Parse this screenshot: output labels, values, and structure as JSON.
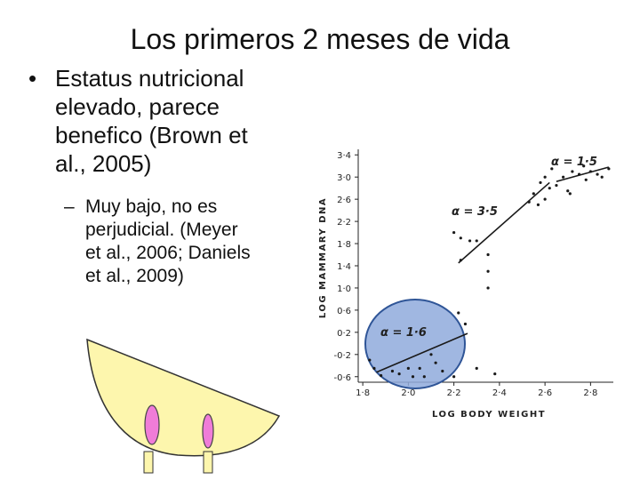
{
  "slide": {
    "title": "Los primeros 2 meses de vida",
    "bullet1": {
      "marker": "•",
      "text": "Estatus nutricional\nelevado, parece\nbenefico (Brown et\nal., 2005)"
    },
    "bullet2": {
      "marker": "–",
      "text": "Muy bajo, no es\nperjudicial. (Meyer\net al., 2006; Daniels\net al., 2009)"
    }
  },
  "colors": {
    "udder_fill": "#fdf6ad",
    "teat_fill": "#f07cd8",
    "highlight_fill": "#8faadc",
    "highlight_stroke": "#2f5597"
  },
  "chart_data": {
    "type": "scatter",
    "xlabel": "LOG BODY WEIGHT",
    "ylabel": "LOG MAMMARY DNA",
    "xlim": [
      1.78,
      2.9
    ],
    "ylim": [
      -0.7,
      3.5
    ],
    "x_ticks": [
      "1·8",
      "2·0",
      "2·2",
      "2·4",
      "2·6",
      "2·8"
    ],
    "x_tick_values": [
      1.8,
      2.0,
      2.2,
      2.4,
      2.6,
      2.8
    ],
    "y_ticks": [
      "3·4",
      "3·0",
      "2·6",
      "2·2",
      "1·8",
      "1·4",
      "1·0",
      "0·6",
      "0·2",
      "-0·2",
      "-0·6"
    ],
    "y_tick_values": [
      3.4,
      3.0,
      2.6,
      2.2,
      1.8,
      1.4,
      1.0,
      0.6,
      0.2,
      -0.2,
      -0.6
    ],
    "annotations": [
      "α = 1·5",
      "α = 3·5",
      "α = 1·6"
    ],
    "series": [
      {
        "points": [
          [
            2.2,
            2.0
          ],
          [
            2.23,
            1.9
          ],
          [
            2.27,
            1.85
          ],
          [
            2.3,
            1.85
          ],
          [
            2.23,
            1.5
          ],
          [
            2.35,
            1.3
          ],
          [
            2.35,
            1.6
          ],
          [
            2.35,
            1.0
          ],
          [
            2.53,
            2.55
          ],
          [
            2.55,
            2.7
          ],
          [
            2.57,
            2.5
          ],
          [
            2.58,
            2.9
          ],
          [
            2.6,
            2.6
          ],
          [
            2.6,
            3.0
          ],
          [
            2.62,
            2.8
          ],
          [
            2.63,
            3.15
          ],
          [
            2.65,
            2.85
          ],
          [
            2.68,
            3.0
          ],
          [
            2.7,
            2.75
          ],
          [
            2.72,
            3.1
          ],
          [
            2.75,
            3.05
          ],
          [
            2.78,
            2.95
          ],
          [
            2.8,
            3.1
          ],
          [
            2.83,
            3.05
          ],
          [
            2.85,
            3.0
          ],
          [
            2.88,
            3.15
          ],
          [
            2.77,
            3.2
          ],
          [
            2.71,
            2.7
          ]
        ],
        "fit": [
          [
            2.22,
            1.45
          ],
          [
            2.62,
            2.9
          ]
        ]
      },
      {
        "points": [
          [
            1.83,
            -0.3
          ],
          [
            1.85,
            -0.45
          ],
          [
            1.88,
            -0.58
          ],
          [
            1.93,
            -0.5
          ],
          [
            1.96,
            -0.55
          ],
          [
            2.0,
            -0.45
          ],
          [
            2.02,
            -0.6
          ],
          [
            2.05,
            -0.45
          ],
          [
            2.07,
            -0.6
          ],
          [
            2.1,
            -0.2
          ],
          [
            2.12,
            -0.35
          ],
          [
            2.15,
            -0.5
          ],
          [
            2.2,
            -0.6
          ],
          [
            2.22,
            0.55
          ],
          [
            2.25,
            0.35
          ],
          [
            2.3,
            -0.45
          ],
          [
            2.38,
            -0.55
          ]
        ],
        "fit": [
          [
            1.86,
            -0.52
          ],
          [
            2.26,
            0.18
          ]
        ]
      },
      {
        "fit": [
          [
            2.65,
            2.92
          ],
          [
            2.88,
            3.18
          ]
        ]
      }
    ]
  }
}
